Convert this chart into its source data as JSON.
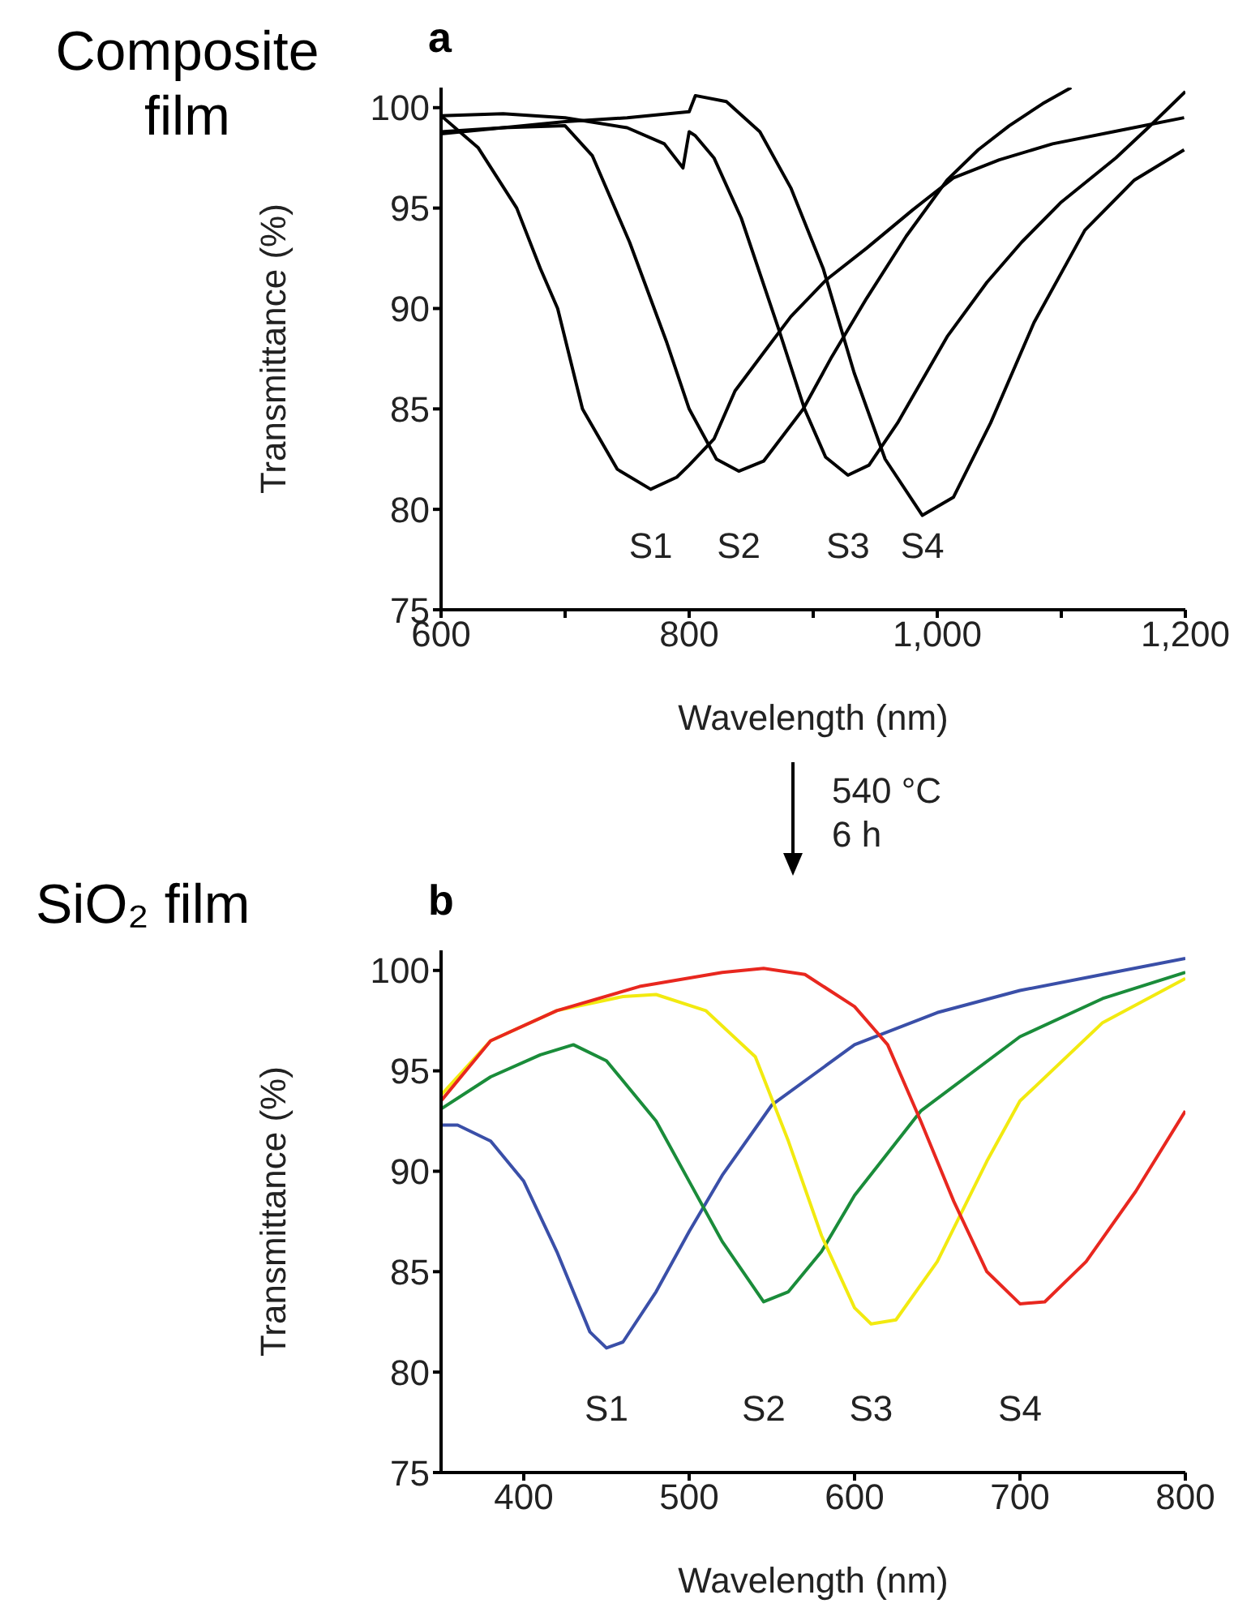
{
  "chart_data": [
    {
      "type": "line",
      "title": "a",
      "xlabel": "Wavelength (nm)",
      "ylabel": "Transmittance (%)",
      "xlim": [
        600,
        1200
      ],
      "xticks": [
        600,
        {
          "value": 700,
          "label": null
        },
        800,
        {
          "value": 900,
          "label": null
        },
        {
          "value": 1000,
          "label": "1,000"
        },
        {
          "value": 1100,
          "label": null
        },
        {
          "value": 1200,
          "label": "1,200"
        }
      ],
      "ylim": [
        75,
        101
      ],
      "yticks": [
        75,
        80,
        85,
        90,
        95,
        100
      ],
      "annotations": [
        "Composite film",
        "540 °C",
        "6 h"
      ],
      "series": [
        {
          "name": "S1",
          "color": "#000000",
          "x": [
            600,
            630,
            661,
            680,
            694,
            714,
            742,
            769,
            790,
            800,
            820,
            837,
            860,
            882,
            910,
            943,
            980,
            1013,
            1050,
            1093,
            1150,
            1199
          ],
          "values": [
            99.6,
            98,
            95,
            92,
            90,
            85,
            82,
            81,
            81.6,
            82.2,
            83.5,
            85.9,
            87.8,
            89.6,
            91.4,
            93,
            94.9,
            96.5,
            97.4,
            98.2,
            98.9,
            99.5
          ]
        },
        {
          "name": "S2",
          "color": "#000000",
          "x": [
            600,
            650,
            700,
            722,
            752,
            782,
            800,
            822,
            840,
            860,
            892,
            915,
            943,
            975,
            1008,
            1033,
            1058,
            1085,
            1108
          ],
          "values": [
            98.8,
            99,
            99.1,
            97.6,
            93.3,
            88.3,
            85,
            82.5,
            81.9,
            82.4,
            85,
            87.6,
            90.5,
            93.6,
            96.4,
            97.9,
            99.1,
            100.2,
            101
          ]
        },
        {
          "name": "S3",
          "color": "#000000",
          "x": [
            600,
            650,
            700,
            750,
            780,
            795,
            800,
            805,
            820,
            842,
            872,
            893,
            910,
            928,
            945,
            968,
            1008,
            1040,
            1068,
            1100,
            1144,
            1170,
            1200
          ],
          "values": [
            99.6,
            99.7,
            99.5,
            99,
            98.2,
            97,
            98.8,
            98.6,
            97.5,
            94.5,
            89,
            85,
            82.6,
            81.7,
            82.2,
            84.3,
            88.6,
            91.3,
            93.3,
            95.3,
            97.5,
            99,
            100.8
          ]
        },
        {
          "name": "S4",
          "color": "#000000",
          "x": [
            600,
            650,
            700,
            750,
            800,
            805,
            830,
            857,
            882,
            908,
            933,
            958,
            988,
            1013,
            1043,
            1078,
            1119,
            1159,
            1199
          ],
          "values": [
            98.7,
            99,
            99.3,
            99.5,
            99.8,
            100.6,
            100.3,
            98.8,
            96,
            92,
            86.8,
            82.5,
            79.7,
            80.6,
            84.3,
            89.3,
            93.9,
            96.4,
            97.9
          ]
        }
      ]
    },
    {
      "type": "line",
      "title": "b",
      "xlabel": "Wavelength (nm)",
      "ylabel": "Transmittance (%)",
      "xlim": [
        350,
        800
      ],
      "xticks": [
        400,
        500,
        600,
        700,
        800
      ],
      "ylim": [
        75,
        101
      ],
      "yticks": [
        75,
        80,
        85,
        90,
        95,
        100
      ],
      "annotations": [
        "SiO₂ film"
      ],
      "series": [
        {
          "name": "S1",
          "color": "#3a4fa8",
          "x": [
            350,
            360,
            380,
            400,
            420,
            440,
            450,
            460,
            480,
            500,
            520,
            550,
            600,
            650,
            700,
            750,
            800
          ],
          "values": [
            92.3,
            92.3,
            91.5,
            89.5,
            86,
            82,
            81.2,
            81.5,
            84,
            87,
            89.8,
            93.3,
            96.3,
            97.9,
            99,
            99.8,
            100.6
          ]
        },
        {
          "name": "S2",
          "color": "#1a8c3a",
          "x": [
            350,
            380,
            410,
            430,
            450,
            480,
            500,
            520,
            545,
            560,
            580,
            600,
            640,
            700,
            750,
            800
          ],
          "values": [
            93.1,
            94.7,
            95.8,
            96.3,
            95.5,
            92.5,
            89.5,
            86.5,
            83.5,
            84,
            86,
            88.8,
            93,
            96.7,
            98.6,
            99.9
          ]
        },
        {
          "name": "S3",
          "color": "#f2ea10",
          "x": [
            350,
            380,
            420,
            460,
            480,
            510,
            540,
            560,
            580,
            600,
            610,
            625,
            650,
            680,
            700,
            750,
            800
          ],
          "values": [
            93.8,
            96.5,
            98,
            98.7,
            98.8,
            98,
            95.7,
            91.5,
            86.8,
            83.2,
            82.4,
            82.6,
            85.5,
            90.5,
            93.5,
            97.4,
            99.6
          ]
        },
        {
          "name": "S4",
          "color": "#e8271f",
          "x": [
            350,
            380,
            420,
            470,
            520,
            545,
            570,
            600,
            620,
            640,
            660,
            680,
            700,
            715,
            740,
            770,
            800
          ],
          "values": [
            93.5,
            96.5,
            98,
            99.2,
            99.9,
            100.1,
            99.8,
            98.2,
            96.3,
            92.5,
            88.5,
            85,
            83.4,
            83.5,
            85.5,
            89,
            93
          ]
        }
      ]
    }
  ]
}
